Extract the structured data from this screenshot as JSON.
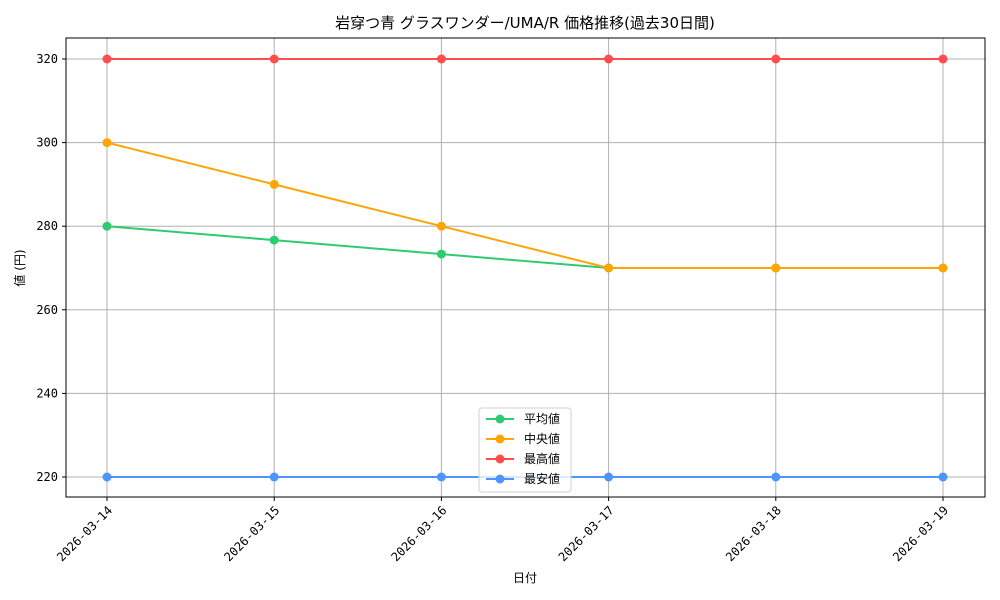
{
  "chart_data": {
    "type": "line",
    "title": "岩穿つ青 グラスワンダー/UMA/R 価格推移(過去30日間)",
    "xlabel": "日付",
    "ylabel": "値 (円)",
    "categories": [
      "2026-03-14",
      "2026-03-15",
      "2026-03-16",
      "2026-03-17",
      "2026-03-18",
      "2026-03-19"
    ],
    "ylim": [
      215,
      325
    ],
    "yticks": [
      220,
      240,
      260,
      280,
      300,
      320
    ],
    "grid": true,
    "legend_position": "lower center",
    "series": [
      {
        "name": "平均値",
        "color": "#2ecc71",
        "values": [
          280,
          276.67,
          273.33,
          270,
          270,
          270
        ]
      },
      {
        "name": "中央値",
        "color": "#ffa500",
        "values": [
          300,
          290,
          280,
          270,
          270,
          270
        ]
      },
      {
        "name": "最高値",
        "color": "#ff4d4d",
        "values": [
          320,
          320,
          320,
          320,
          320,
          320
        ]
      },
      {
        "name": "最安値",
        "color": "#4d94ff",
        "values": [
          220,
          220,
          220,
          220,
          220,
          220
        ]
      }
    ]
  }
}
